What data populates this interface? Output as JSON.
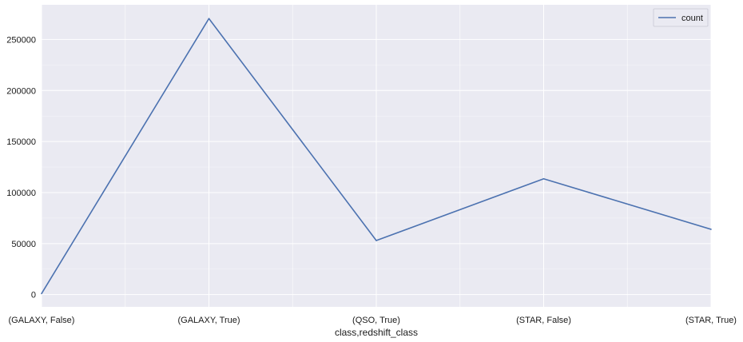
{
  "chart_data": {
    "type": "line",
    "title": "",
    "xlabel": "class,redshift_class",
    "ylabel": "",
    "categories": [
      "(GALAXY, False)",
      "(GALAXY, True)",
      "(QSO, True)",
      "(STAR, False)",
      "(STAR, True)"
    ],
    "series": [
      {
        "name": "count",
        "values": [
          1000,
          270500,
          53000,
          113500,
          64000
        ]
      }
    ],
    "ylim": [
      -12000,
      284000
    ],
    "yticks": [
      0,
      50000,
      100000,
      150000,
      200000,
      250000
    ],
    "grid": true,
    "legend": "top-right",
    "colors": {
      "background": "#eaeaf2",
      "grid": "#ffffff",
      "line": "#4c72b0"
    }
  }
}
